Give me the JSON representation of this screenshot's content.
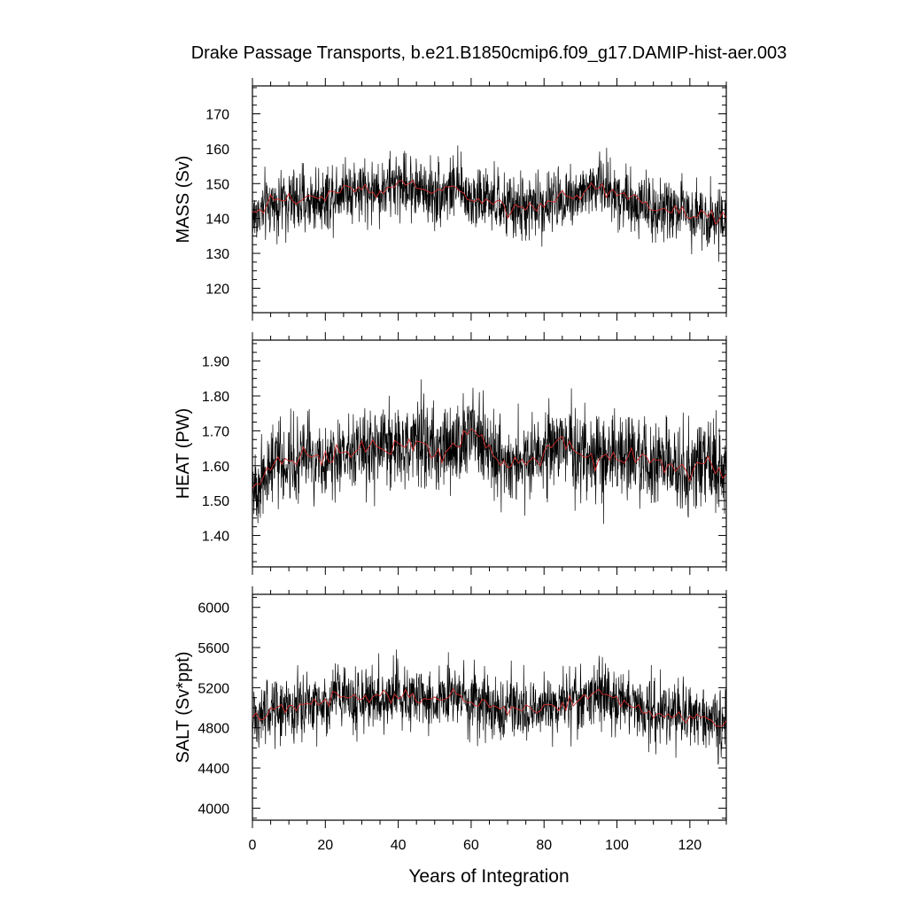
{
  "title": "Drake Passage Transports, b.e21.B1850cmip6.f09_g17.DAMIP-hist-aer.003",
  "xlabel": "Years of Integration",
  "colors": {
    "monthly": "#000000",
    "annual": "#d32a2a"
  },
  "chart_data": [
    {
      "type": "line",
      "ylabel": "MASS (Sv)",
      "xlim": [
        0,
        130
      ],
      "ylim": [
        113,
        178
      ],
      "x_ticks": [
        0,
        20,
        40,
        60,
        80,
        100,
        120
      ],
      "y_ticks": [
        120,
        130,
        140,
        150,
        160,
        170
      ],
      "y_tick_labels": [
        "120",
        "130",
        "140",
        "150",
        "160",
        "170"
      ],
      "series": [
        {
          "color": "#000000",
          "noise": 6.5,
          "x": [
            0,
            5,
            10,
            15,
            20,
            25,
            30,
            35,
            40,
            45,
            50,
            55,
            60,
            65,
            70,
            75,
            80,
            85,
            90,
            95,
            100,
            105,
            110,
            115,
            120,
            125,
            130
          ],
          "y": [
            140,
            144,
            145,
            145,
            146,
            149,
            148,
            148,
            150,
            149,
            147,
            149,
            146,
            145,
            143,
            143,
            144,
            146,
            147,
            150,
            147,
            145,
            143,
            142,
            142,
            141,
            139
          ]
        },
        {
          "color": "#d32a2a",
          "x": [
            0,
            5,
            10,
            15,
            20,
            25,
            30,
            35,
            40,
            45,
            50,
            55,
            60,
            65,
            70,
            75,
            80,
            85,
            90,
            95,
            100,
            105,
            110,
            115,
            120,
            125,
            130
          ],
          "y": [
            140,
            144,
            145,
            145,
            146,
            149,
            148,
            148,
            150,
            149,
            147,
            149,
            146,
            145,
            143,
            143,
            144,
            146,
            147,
            150,
            147,
            145,
            143,
            142,
            142,
            141,
            139
          ]
        }
      ]
    },
    {
      "type": "line",
      "ylabel": "HEAT (PW)",
      "xlim": [
        0,
        130
      ],
      "ylim": [
        1.31,
        1.96
      ],
      "x_ticks": [
        0,
        20,
        40,
        60,
        80,
        100,
        120
      ],
      "y_ticks": [
        1.4,
        1.5,
        1.6,
        1.7,
        1.8,
        1.9
      ],
      "y_tick_labels": [
        "1.40",
        "1.50",
        "1.60",
        "1.70",
        "1.80",
        "1.90"
      ],
      "series": [
        {
          "color": "#000000",
          "noise": 0.085,
          "x": [
            0,
            5,
            10,
            15,
            20,
            25,
            30,
            35,
            40,
            45,
            50,
            55,
            60,
            65,
            70,
            75,
            80,
            85,
            90,
            95,
            100,
            105,
            110,
            115,
            120,
            125,
            130
          ],
          "y": [
            1.53,
            1.6,
            1.61,
            1.63,
            1.62,
            1.64,
            1.66,
            1.65,
            1.67,
            1.66,
            1.64,
            1.65,
            1.7,
            1.64,
            1.6,
            1.61,
            1.63,
            1.68,
            1.63,
            1.62,
            1.63,
            1.62,
            1.61,
            1.6,
            1.58,
            1.63,
            1.55
          ]
        },
        {
          "color": "#d32a2a",
          "x": [
            0,
            5,
            10,
            15,
            20,
            25,
            30,
            35,
            40,
            45,
            50,
            55,
            60,
            65,
            70,
            75,
            80,
            85,
            90,
            95,
            100,
            105,
            110,
            115,
            120,
            125,
            130
          ],
          "y": [
            1.53,
            1.6,
            1.61,
            1.63,
            1.62,
            1.64,
            1.66,
            1.65,
            1.67,
            1.66,
            1.64,
            1.65,
            1.7,
            1.64,
            1.6,
            1.61,
            1.63,
            1.68,
            1.63,
            1.62,
            1.63,
            1.62,
            1.61,
            1.6,
            1.58,
            1.63,
            1.55
          ]
        }
      ]
    },
    {
      "type": "line",
      "ylabel": "SALT (Sv*ppt)",
      "xlim": [
        0,
        130
      ],
      "ylim": [
        3880,
        6130
      ],
      "x_ticks": [
        0,
        20,
        40,
        60,
        80,
        100,
        120
      ],
      "y_ticks": [
        4000,
        4400,
        4800,
        5200,
        5600,
        6000
      ],
      "y_tick_labels": [
        "4000",
        "4400",
        "4800",
        "5200",
        "5600",
        "6000"
      ],
      "series": [
        {
          "color": "#000000",
          "noise": 230,
          "x": [
            0,
            5,
            10,
            15,
            20,
            25,
            30,
            35,
            40,
            45,
            50,
            55,
            60,
            65,
            70,
            75,
            80,
            85,
            90,
            95,
            100,
            105,
            110,
            115,
            120,
            125,
            130
          ],
          "y": [
            4880,
            4980,
            5020,
            5030,
            5060,
            5140,
            5100,
            5110,
            5150,
            5110,
            5070,
            5120,
            5060,
            5020,
            4980,
            4990,
            5010,
            5040,
            5080,
            5150,
            5050,
            5000,
            4950,
            4920,
            4910,
            4880,
            4850
          ]
        },
        {
          "color": "#d32a2a",
          "x": [
            0,
            5,
            10,
            15,
            20,
            25,
            30,
            35,
            40,
            45,
            50,
            55,
            60,
            65,
            70,
            75,
            80,
            85,
            90,
            95,
            100,
            105,
            110,
            115,
            120,
            125,
            130
          ],
          "y": [
            4880,
            4980,
            5020,
            5030,
            5060,
            5140,
            5100,
            5110,
            5150,
            5110,
            5070,
            5120,
            5060,
            5020,
            4980,
            4990,
            5010,
            5040,
            5080,
            5150,
            5050,
            5000,
            4950,
            4920,
            4910,
            4880,
            4850
          ]
        }
      ]
    }
  ]
}
